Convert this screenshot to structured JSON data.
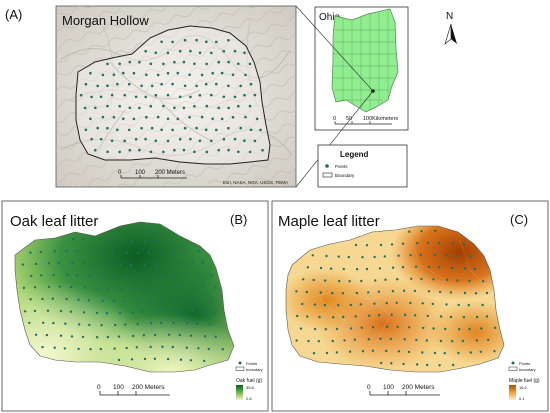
{
  "panel_a": {
    "letter": "(A)",
    "title": "Morgan Hollow",
    "scale": {
      "ticks": [
        "0",
        "100",
        "200 Meters"
      ]
    },
    "attribution": "Esri, NASA, NGA, USGS, FEMA"
  },
  "inset": {
    "title": "Ohio",
    "scale": {
      "ticks": [
        "0",
        "50",
        "100Kilometers"
      ]
    }
  },
  "north": {
    "label": "N"
  },
  "legend_a": {
    "title": "Legend",
    "items": [
      {
        "label": "Points"
      },
      {
        "label": "Boundary"
      }
    ]
  },
  "panel_b": {
    "letter": "(B)",
    "title": "Oak leaf litter",
    "legend": {
      "items": [
        {
          "label": "Points"
        },
        {
          "label": "boundary"
        }
      ]
    },
    "ramp": {
      "title": "Oak fuel (g)",
      "max": "39.8",
      "min": "2.6"
    },
    "scale": {
      "ticks": [
        "0",
        "100",
        "200 Meters"
      ]
    }
  },
  "panel_c": {
    "letter": "(C)",
    "title": "Maple leaf litter",
    "legend": {
      "items": [
        {
          "label": "Points"
        },
        {
          "label": "boundary"
        }
      ]
    },
    "ramp": {
      "title": "Maple fuel (g)",
      "max": "16.2",
      "min": "0.1"
    },
    "scale": {
      "ticks": [
        "0",
        "100",
        "200 Meters"
      ]
    }
  },
  "colors": {
    "point": "#1f6f66",
    "ohio_fill": "#90ee90",
    "oak_low": "#f2f6c9",
    "oak_high": "#0c5c24",
    "maple_low": "#fbf0c8",
    "maple_high": "#b34a00"
  }
}
